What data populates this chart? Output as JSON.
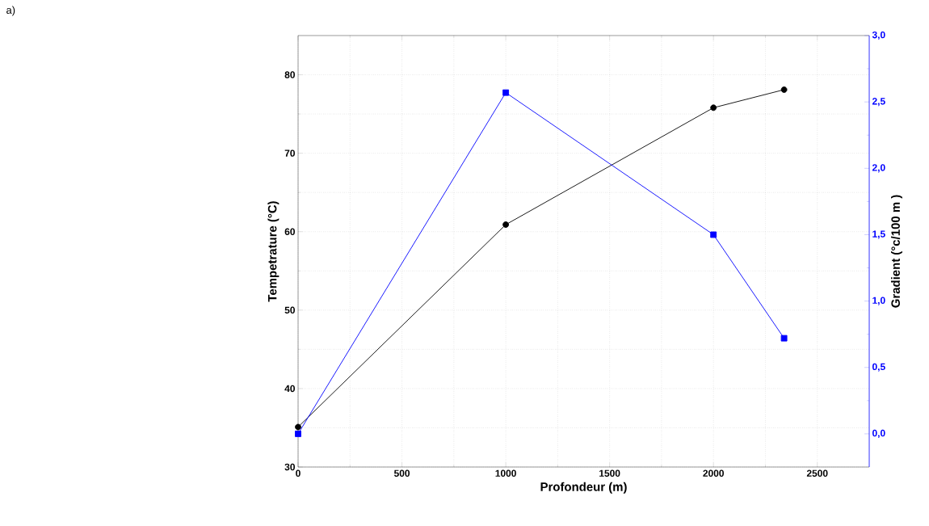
{
  "chart_data": {
    "type": "line",
    "xlabel": "Profondeur (m)",
    "ylabel": "Tempetrature (°C)",
    "y2label": "Gradient (°c/100 m )",
    "annotations": [
      "a)"
    ],
    "x": [
      0,
      1000,
      2000,
      2340
    ],
    "series": [
      {
        "color": "#000000",
        "marker": "circle",
        "values": [
          35.1,
          60.9,
          75.8,
          78.1
        ]
      },
      {
        "color": "#0000ff",
        "marker": "square",
        "axis": "y2",
        "values": [
          0.0,
          2.57,
          1.5,
          0.72
        ]
      }
    ],
    "xlim": [
      0,
      2750
    ],
    "xticks": [
      0,
      500,
      1000,
      1500,
      2000,
      2500
    ],
    "ylim": [
      30,
      85
    ],
    "yticks": [
      30,
      40,
      50,
      60,
      70,
      80
    ],
    "y2lim": [
      -0.25,
      3.0
    ],
    "y2ticks": [
      {
        "value": 0,
        "label": "0,0"
      },
      {
        "value": 0.5,
        "label": "0,5"
      },
      {
        "value": 1,
        "label": "1,0"
      },
      {
        "value": 1.5,
        "label": "1,5"
      },
      {
        "value": 2,
        "label": "2,0"
      },
      {
        "value": 2.5,
        "label": "2,5"
      },
      {
        "value": 3,
        "label": "3,0"
      }
    ],
    "grid": true,
    "line_style": "solid"
  }
}
